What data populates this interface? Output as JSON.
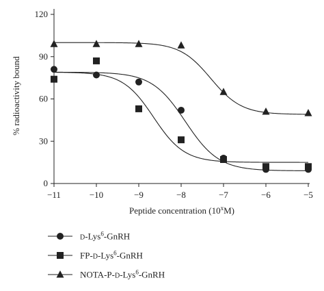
{
  "chart_data": {
    "type": "scatter",
    "xlabel": "Peptide concentration (10",
    "xlabel_sup": "x",
    "xlabel_unit": "M)",
    "ylabel": "% radioactivity bound",
    "xlim": [
      -11,
      -5
    ],
    "ylim": [
      0,
      120
    ],
    "x_ticks": [
      -11,
      -10,
      -9,
      -8,
      -7,
      -6,
      -5
    ],
    "x_tick_labels": [
      "−11",
      "−10",
      "−9",
      "−8",
      "−7",
      "−6",
      "−5"
    ],
    "y_ticks": [
      0,
      30,
      60,
      90,
      120
    ],
    "y_tick_labels": [
      "0",
      "30",
      "60",
      "90",
      "120"
    ],
    "grid": false,
    "legend_position": "bottom-left",
    "series": [
      {
        "name": "D-Lys6-GnRH",
        "legend_label": {
          "prefix": "",
          "small_caps": "d",
          "mid": "-Lys",
          "sup": "6",
          "suffix": "-GnRH"
        },
        "marker": "circle",
        "x": [
          -11,
          -10,
          -9,
          -8,
          -7,
          -6,
          -5
        ],
        "y": [
          81,
          77,
          72,
          52,
          18,
          10,
          10
        ],
        "fit": {
          "top": 79,
          "bottom": 9,
          "log_ec50": -7.9,
          "hill": 1.1
        }
      },
      {
        "name": "FP-D-Lys6-GnRH",
        "legend_label": {
          "prefix": "FP-",
          "small_caps": "d",
          "mid": "-Lys",
          "sup": "6",
          "suffix": "-GnRH"
        },
        "marker": "square",
        "x": [
          -11,
          -10,
          -9,
          -8,
          -7,
          -6,
          -5
        ],
        "y": [
          74,
          87,
          53,
          31,
          17,
          12,
          12
        ],
        "fit": {
          "top": 79,
          "bottom": 15,
          "log_ec50": -8.65,
          "hill": 1.2
        }
      },
      {
        "name": "NOTA-P-D-Lys6-GnRH",
        "legend_label": {
          "prefix": "NOTA-P-",
          "small_caps": "d",
          "mid": "-Lys",
          "sup": "6",
          "suffix": "-GnRH"
        },
        "marker": "triangle",
        "x": [
          -11,
          -10,
          -9,
          -8,
          -7,
          -6,
          -5
        ],
        "y": [
          99,
          99,
          99,
          98,
          65,
          51,
          50
        ],
        "fit": {
          "top": 100,
          "bottom": 49,
          "log_ec50": -7.3,
          "hill": 1.2
        }
      }
    ]
  }
}
